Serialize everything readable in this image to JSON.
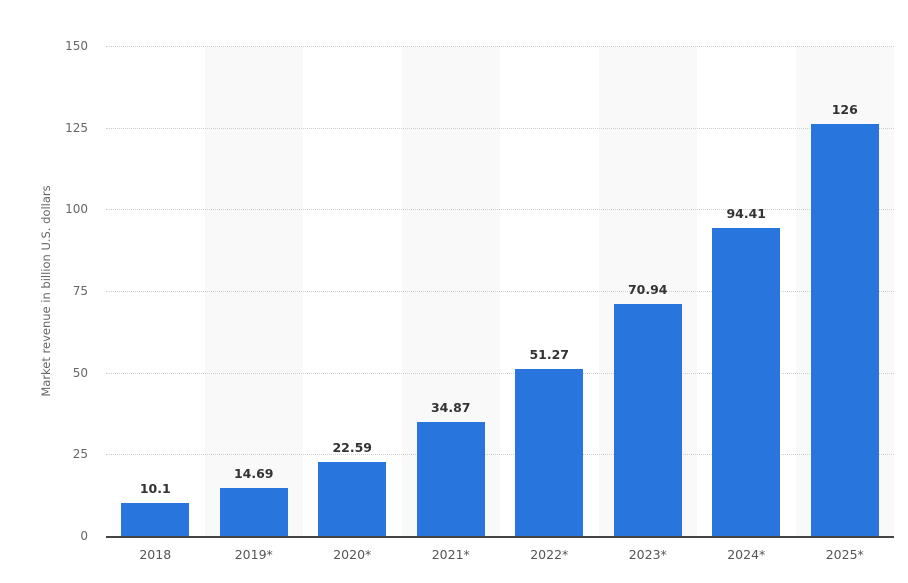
{
  "chart_data": {
    "type": "bar",
    "title": "",
    "xlabel": "",
    "ylabel": "Market revenue in billion U.S. dollars",
    "categories": [
      "2018",
      "2019*",
      "2020*",
      "2021*",
      "2022*",
      "2023*",
      "2024*",
      "2025*"
    ],
    "values": [
      10.1,
      14.69,
      22.59,
      34.87,
      51.27,
      70.94,
      94.41,
      126
    ],
    "value_labels": [
      "10.1",
      "14.69",
      "22.59",
      "34.87",
      "51.27",
      "70.94",
      "94.41",
      "126"
    ],
    "ylim": [
      0,
      150
    ],
    "yticks": [
      0,
      25,
      50,
      75,
      100,
      125,
      150
    ],
    "grid": true,
    "legend": null,
    "bar_color": "#2876dd",
    "band_color": "#f9f9f9"
  }
}
